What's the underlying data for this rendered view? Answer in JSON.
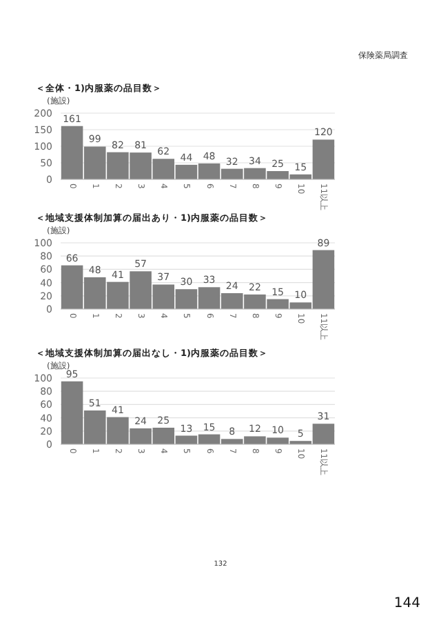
{
  "chart_data": [
    {
      "type": "bar",
      "title": "＜全体・1)内服薬の品目数＞",
      "ylabel": "(施設)",
      "categories": [
        "0",
        "1",
        "2",
        "3",
        "4",
        "5",
        "6",
        "7",
        "8",
        "9",
        "10",
        "11以上"
      ],
      "values": [
        161,
        99,
        82,
        81,
        62,
        44,
        48,
        32,
        34,
        25,
        15,
        120
      ],
      "color": "#7f7f7f",
      "ylim": [
        0,
        200
      ],
      "yticks": [
        0,
        50,
        100,
        150,
        200
      ],
      "grid": "y",
      "data_labels": true,
      "annotations": [
        "保険薬局調査"
      ]
    },
    {
      "type": "bar",
      "title": "＜地域支援体制加算の届出あり・1)内服薬の品目数＞",
      "ylabel": "(施設)",
      "categories": [
        "0",
        "1",
        "2",
        "3",
        "4",
        "5",
        "6",
        "7",
        "8",
        "9",
        "10",
        "11以上"
      ],
      "values": [
        66,
        48,
        41,
        57,
        37,
        30,
        33,
        24,
        22,
        15,
        10,
        89
      ],
      "color": "#7f7f7f",
      "ylim": [
        0,
        100
      ],
      "yticks": [
        0,
        20,
        40,
        60,
        80,
        100
      ],
      "grid": "y",
      "data_labels": true
    },
    {
      "type": "bar",
      "title": "＜地域支援体制加算の届出なし・1)内服薬の品目数＞",
      "ylabel": "(施設)",
      "categories": [
        "0",
        "1",
        "2",
        "3",
        "4",
        "5",
        "6",
        "7",
        "8",
        "9",
        "10",
        "11以上"
      ],
      "values": [
        95,
        51,
        41,
        24,
        25,
        13,
        15,
        8,
        12,
        10,
        5,
        31
      ],
      "color": "#7f7f7f",
      "ylim": [
        0,
        100
      ],
      "yticks": [
        0,
        20,
        40,
        60,
        80,
        100
      ],
      "grid": "y",
      "data_labels": true,
      "annotations": [
        "132",
        "144"
      ]
    }
  ]
}
